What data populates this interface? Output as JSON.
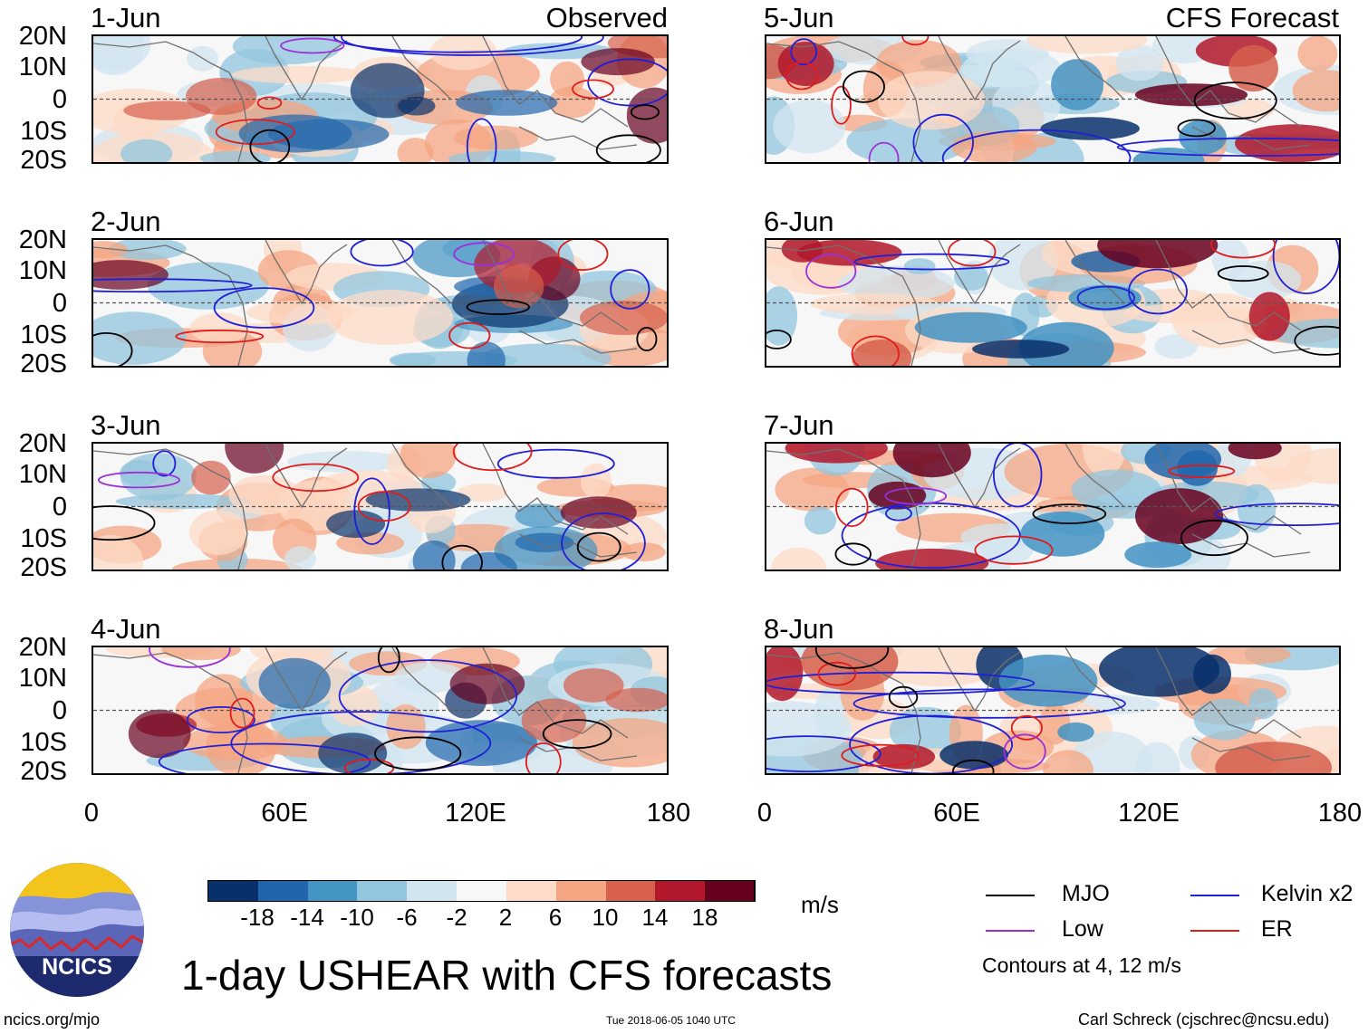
{
  "figure": {
    "title": "1-day USHEAR with CFS forecasts",
    "left_column_label": "Observed",
    "right_column_label": "CFS Forecast",
    "units": "m/s",
    "website": "ncics.org/mjo",
    "timestamp": "Tue 2018-06-05 1040 UTC",
    "author": "Carl Schreck (cjschrec@ncsu.edu)",
    "logo_text": "NCICS"
  },
  "panels": [
    {
      "date": "1-Jun",
      "column": "observed",
      "seed": 11
    },
    {
      "date": "2-Jun",
      "column": "observed",
      "seed": 23
    },
    {
      "date": "3-Jun",
      "column": "observed",
      "seed": 37
    },
    {
      "date": "4-Jun",
      "column": "observed",
      "seed": 41
    },
    {
      "date": "5-Jun",
      "column": "forecast",
      "seed": 53
    },
    {
      "date": "6-Jun",
      "column": "forecast",
      "seed": 67
    },
    {
      "date": "7-Jun",
      "column": "forecast",
      "seed": 71
    },
    {
      "date": "8-Jun",
      "column": "forecast",
      "seed": 89
    }
  ],
  "axes": {
    "lat_labels": [
      "20N",
      "10N",
      "0",
      "10S",
      "20S"
    ],
    "lon_labels": [
      "0",
      "60E",
      "120E",
      "180"
    ]
  },
  "colorbar": {
    "colors": [
      "#08306b",
      "#2166ac",
      "#4393c3",
      "#92c5de",
      "#d1e5f0",
      "#f7f7f7",
      "#fddbc7",
      "#f4a582",
      "#d6604d",
      "#b2182b",
      "#67001f"
    ],
    "ticks": [
      "-18",
      "-14",
      "-10",
      "-6",
      "-2",
      "2",
      "6",
      "10",
      "14",
      "18"
    ]
  },
  "legend": {
    "items": [
      {
        "label": "MJO",
        "color": "#000000"
      },
      {
        "label": "Kelvin x2",
        "color": "#1f1fd8"
      },
      {
        "label": "Low",
        "color": "#9b30d9"
      },
      {
        "label": "ER",
        "color": "#e01b1b"
      }
    ],
    "note": "Contours at 4, 12 m/s"
  }
}
